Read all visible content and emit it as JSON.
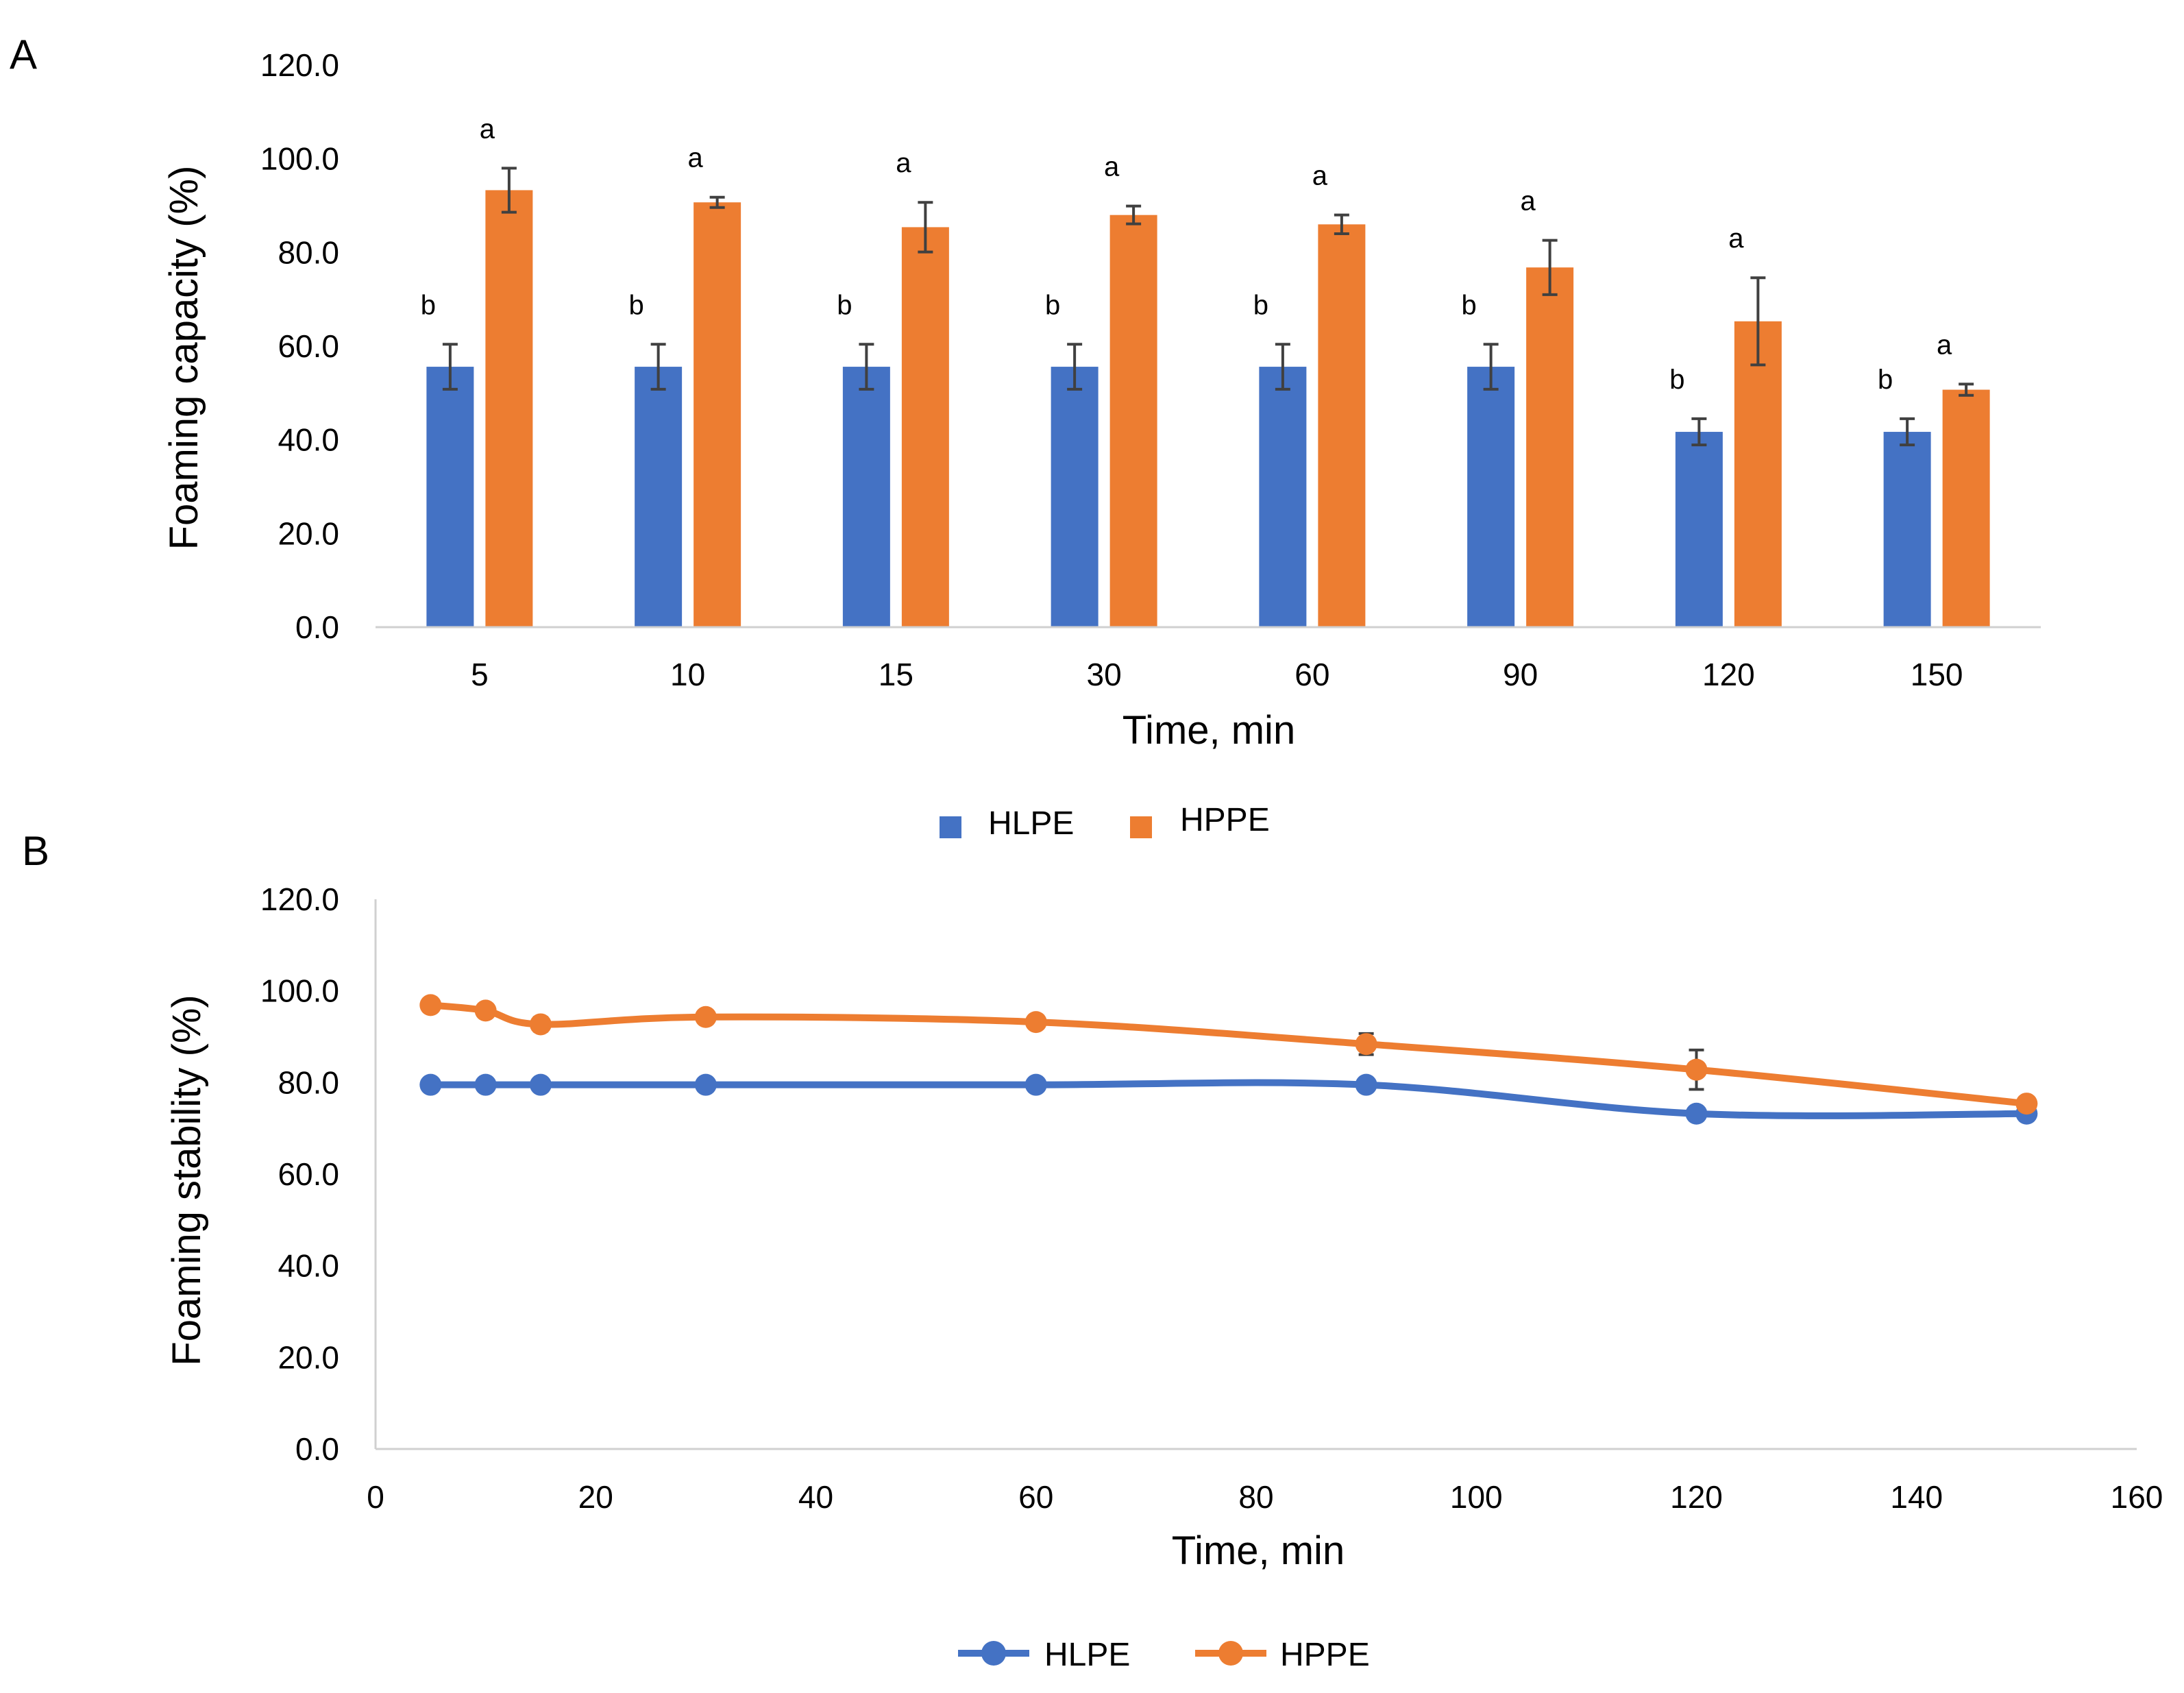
{
  "chart_data": [
    {
      "panel_label": "A",
      "type": "bar",
      "title": "",
      "xlabel": "Time, min",
      "ylabel": "Foaming capacity (%)",
      "categories": [
        "5",
        "10",
        "15",
        "30",
        "60",
        "90",
        "120",
        "150"
      ],
      "ylim": [
        0,
        120
      ],
      "yticks": [
        "0.0",
        "20.0",
        "40.0",
        "60.0",
        "80.0",
        "100.0",
        "120.0"
      ],
      "grid": false,
      "legend_position": "bottom",
      "series": [
        {
          "name": "HLPE",
          "color": "#4472C4",
          "values": [
            55.6,
            55.6,
            55.6,
            55.6,
            55.6,
            55.6,
            41.7,
            41.7
          ],
          "errors": [
            4.8,
            4.8,
            4.8,
            4.8,
            4.8,
            4.8,
            2.8,
            2.8
          ],
          "significance": [
            "b",
            "b",
            "b",
            "b",
            "b",
            "b",
            "b",
            "b"
          ]
        },
        {
          "name": "HPPE",
          "color": "#ED7D31",
          "values": [
            93.3,
            90.7,
            85.4,
            88.0,
            86.0,
            76.8,
            65.3,
            50.7
          ],
          "errors": [
            4.7,
            1.1,
            5.3,
            1.9,
            2.0,
            5.8,
            9.3,
            1.2
          ],
          "significance": [
            "a",
            "a",
            "a",
            "a",
            "a",
            "a",
            "a",
            "a"
          ]
        }
      ]
    },
    {
      "panel_label": "B",
      "type": "line",
      "title": "",
      "xlabel": "Time, min",
      "ylabel": "Foaming stability (%)",
      "xlim": [
        0,
        160
      ],
      "ylim": [
        0,
        120
      ],
      "xticks": [
        "0",
        "20",
        "40",
        "60",
        "80",
        "100",
        "120",
        "140",
        "160"
      ],
      "yticks": [
        "0.0",
        "20.0",
        "40.0",
        "60.0",
        "80.0",
        "100.0",
        "120.0"
      ],
      "grid": false,
      "legend_position": "bottom",
      "series": [
        {
          "name": "HLPE",
          "color": "#4472C4",
          "x": [
            5,
            10,
            15,
            30,
            60,
            90,
            120,
            150
          ],
          "y": [
            79.5,
            79.5,
            79.5,
            79.5,
            79.5,
            79.5,
            73.2,
            73.2
          ],
          "errors": [
            0.6,
            0.6,
            0.6,
            0.6,
            0.6,
            0.6,
            0.6,
            0.6
          ]
        },
        {
          "name": "HPPE",
          "color": "#ED7D31",
          "x": [
            5,
            10,
            15,
            30,
            60,
            90,
            120,
            150
          ],
          "y": [
            96.9,
            95.7,
            92.7,
            94.3,
            93.2,
            88.4,
            82.8,
            75.4
          ],
          "errors": [
            0.5,
            0.5,
            1.5,
            0.5,
            0.6,
            2.3,
            4.3,
            0.8
          ]
        }
      ]
    }
  ]
}
